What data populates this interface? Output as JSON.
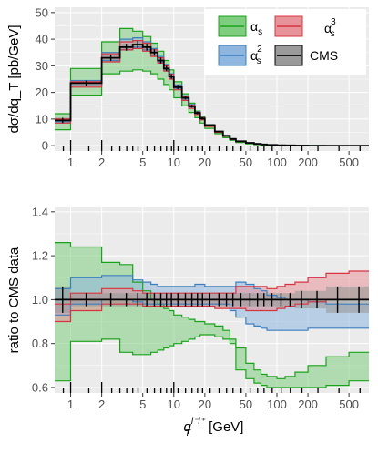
{
  "chart_data": [
    {
      "type": "line",
      "panel": "top",
      "ylabel": "dσ/dq_T [pb/GeV]",
      "xscale": "log",
      "xlim": [
        0.7,
        780
      ],
      "ylim": [
        -2,
        52
      ],
      "yticks": [
        0,
        10,
        20,
        30,
        40,
        50
      ],
      "grid": true,
      "legend_position": "top-right",
      "bin_edges": [
        0.7,
        1,
        2,
        3,
        4,
        5,
        6,
        7,
        8,
        9,
        10,
        12,
        14,
        16,
        18,
        20,
        25,
        30,
        35,
        40,
        50,
        60,
        70,
        80,
        100,
        120,
        150,
        200,
        300,
        500,
        780
      ],
      "series": [
        {
          "name": "α_s",
          "color": "#1aa31a",
          "fill": "#7fce7f",
          "low": [
            6,
            19,
            27,
            28,
            28.5,
            28,
            27,
            25,
            23,
            21,
            18,
            15,
            12.5,
            10.5,
            8.5,
            6.5,
            4.5,
            3.0,
            2.0,
            1.2,
            0.7,
            0.4,
            0.25,
            0.15,
            0.08,
            0.05,
            0.03,
            0.015,
            0.006,
            0.002
          ],
          "high": [
            12,
            29,
            39,
            44,
            43,
            41,
            38.5,
            35.5,
            32,
            28.5,
            24,
            19.5,
            16,
            13,
            11,
            8,
            5.5,
            3.8,
            2.6,
            1.7,
            1.1,
            0.75,
            0.5,
            0.32,
            0.2,
            0.13,
            0.07,
            0.035,
            0.015,
            0.006
          ]
        },
        {
          "name": "α_s^2",
          "color": "#3b7fc0",
          "fill": "#8eb6de",
          "low": [
            9,
            22.5,
            32,
            36,
            37,
            36,
            34,
            31.5,
            28.5,
            25.5,
            21.5,
            17.5,
            14.5,
            12,
            10,
            7.5,
            5.2,
            3.6,
            2.4,
            1.6,
            1.0,
            0.65,
            0.42,
            0.28,
            0.17,
            0.11,
            0.06,
            0.03,
            0.012,
            0.004
          ],
          "high": [
            10,
            24.5,
            35,
            40,
            40.5,
            39,
            36.5,
            33.5,
            30.5,
            27,
            22.8,
            18.7,
            15.5,
            12.8,
            10.6,
            7.9,
            5.5,
            3.8,
            2.6,
            1.7,
            1.1,
            0.72,
            0.47,
            0.31,
            0.19,
            0.12,
            0.07,
            0.035,
            0.014,
            0.005
          ]
        },
        {
          "name": "α_s^3",
          "color": "#d8343f",
          "fill": "#e8939a",
          "low": [
            8.5,
            22,
            31.5,
            36,
            36.5,
            35.5,
            33.5,
            31,
            28,
            25,
            21,
            17,
            14,
            11.7,
            9.7,
            7.2,
            5.0,
            3.5,
            2.4,
            1.6,
            1.0,
            0.65,
            0.43,
            0.28,
            0.17,
            0.11,
            0.06,
            0.03,
            0.012,
            0.004
          ],
          "high": [
            10,
            24,
            34.5,
            39,
            39.5,
            38.5,
            36,
            33,
            30,
            26.8,
            22.5,
            18.4,
            15.2,
            12.6,
            10.5,
            7.8,
            5.4,
            3.75,
            2.55,
            1.7,
            1.08,
            0.7,
            0.46,
            0.3,
            0.185,
            0.12,
            0.065,
            0.033,
            0.013,
            0.005
          ]
        }
      ],
      "cms": {
        "name": "CMS",
        "color": "#000000",
        "fill": "#9a9a9a",
        "values": [
          9.5,
          23.5,
          33,
          37,
          38,
          37,
          35,
          32,
          29,
          26,
          22,
          18,
          14.8,
          12.3,
          10.2,
          7.6,
          5.3,
          3.7,
          2.5,
          1.65,
          1.05,
          0.68,
          0.45,
          0.29,
          0.18,
          0.115,
          0.065,
          0.032,
          0.013,
          0.0045
        ],
        "err": [
          1,
          1,
          1.2,
          1.3,
          1.3,
          1.3,
          1.2,
          1.1,
          1,
          0.9,
          0.8,
          0.6,
          0.5,
          0.45,
          0.4,
          0.3,
          0.2,
          0.15,
          0.1,
          0.08,
          0.05,
          0.04,
          0.03,
          0.02,
          0.015,
          0.01,
          0.006,
          0.004,
          0.002,
          0.001
        ]
      }
    },
    {
      "type": "line",
      "panel": "bottom",
      "ylabel": "ratio to CMS data",
      "xlabel_base": "q",
      "xlabel_sub": "T",
      "xlabel_sup": "l⁻l⁺",
      "xlabel_unit": " [GeV]",
      "xscale": "log",
      "xlim": [
        0.7,
        780
      ],
      "ylim": [
        0.575,
        1.42
      ],
      "yticks": [
        0.6,
        0.8,
        1.0,
        1.2,
        1.4
      ],
      "ytick_labels": [
        "0.6",
        "0.8",
        "1.0",
        "1.2",
        "1.4"
      ],
      "grid": true,
      "bin_edges": [
        0.7,
        1,
        2,
        3,
        4,
        5,
        6,
        7,
        8,
        9,
        10,
        12,
        14,
        16,
        18,
        20,
        25,
        30,
        35,
        40,
        50,
        60,
        70,
        80,
        100,
        120,
        150,
        200,
        300,
        500,
        780
      ],
      "series": [
        {
          "name": "α_s",
          "color": "#1aa31a",
          "fill": "#7fce7f",
          "low": [
            0.63,
            0.81,
            0.82,
            0.76,
            0.75,
            0.75,
            0.76,
            0.77,
            0.78,
            0.79,
            0.8,
            0.81,
            0.82,
            0.83,
            0.84,
            0.84,
            0.83,
            0.82,
            0.8,
            0.68,
            0.64,
            0.62,
            0.61,
            0.6,
            0.6,
            0.6,
            0.6,
            0.6,
            0.61,
            0.63
          ],
          "high": [
            1.26,
            1.24,
            1.17,
            1.16,
            1.08,
            1.04,
            1.0,
            0.98,
            0.96,
            0.95,
            0.93,
            0.92,
            0.91,
            0.9,
            0.9,
            0.89,
            0.88,
            0.86,
            0.82,
            0.78,
            0.71,
            0.68,
            0.66,
            0.65,
            0.64,
            0.65,
            0.67,
            0.7,
            0.74,
            0.76
          ]
        },
        {
          "name": "α_s^2",
          "color": "#3b7fc0",
          "fill": "#8eb6de",
          "low": [
            0.93,
            0.98,
            1.0,
            1.0,
            0.99,
            0.98,
            0.98,
            0.98,
            0.98,
            0.98,
            0.98,
            0.98,
            0.98,
            0.98,
            0.98,
            0.98,
            0.98,
            0.98,
            0.95,
            0.92,
            0.89,
            0.88,
            0.87,
            0.86,
            0.86,
            0.86,
            0.86,
            0.87,
            0.87,
            0.87
          ],
          "high": [
            1.05,
            1.1,
            1.11,
            1.11,
            1.09,
            1.08,
            1.07,
            1.06,
            1.06,
            1.06,
            1.06,
            1.06,
            1.06,
            1.07,
            1.07,
            1.06,
            1.06,
            1.06,
            1.06,
            1.08,
            1.07,
            1.05,
            1.04,
            1.02,
            1.01,
            1.0,
            1.0,
            0.99,
            0.98,
            0.98
          ]
        },
        {
          "name": "α_s^3",
          "color": "#d8343f",
          "fill": "#e8939a",
          "low": [
            0.9,
            0.95,
            0.98,
            0.98,
            0.98,
            0.97,
            0.97,
            0.97,
            0.97,
            0.97,
            0.97,
            0.97,
            0.97,
            0.97,
            0.97,
            0.97,
            0.96,
            0.96,
            0.96,
            0.96,
            0.95,
            0.95,
            0.95,
            0.95,
            0.96,
            0.97,
            0.98,
            0.99,
            1.0,
            1.0
          ],
          "high": [
            0.98,
            1.03,
            1.05,
            1.05,
            1.04,
            1.03,
            1.03,
            1.03,
            1.03,
            1.03,
            1.03,
            1.03,
            1.03,
            1.03,
            1.03,
            1.03,
            1.03,
            1.03,
            1.03,
            1.06,
            1.06,
            1.06,
            1.06,
            1.05,
            1.06,
            1.07,
            1.08,
            1.1,
            1.12,
            1.13
          ]
        }
      ],
      "cms": {
        "name": "CMS",
        "color": "#000000",
        "fill": "#9a9a9a",
        "values": [
          1,
          1,
          1,
          1,
          1,
          1,
          1,
          1,
          1,
          1,
          1,
          1,
          1,
          1,
          1,
          1,
          1,
          1,
          1,
          1,
          1,
          1,
          1,
          1,
          1,
          1,
          1,
          1,
          1,
          1
        ],
        "err": [
          0.06,
          0.03,
          0.03,
          0.03,
          0.03,
          0.03,
          0.03,
          0.03,
          0.03,
          0.03,
          0.03,
          0.03,
          0.03,
          0.03,
          0.03,
          0.03,
          0.03,
          0.03,
          0.03,
          0.03,
          0.03,
          0.03,
          0.03,
          0.03,
          0.03,
          0.03,
          0.04,
          0.04,
          0.06,
          0.06
        ]
      }
    }
  ],
  "axes": {
    "x_tick_labels": [
      {
        "value": 1,
        "label": "1"
      },
      {
        "value": 2,
        "label": "2"
      },
      {
        "value": 5,
        "label": "5"
      },
      {
        "value": 10,
        "label": "10"
      },
      {
        "value": 20,
        "label": "20"
      },
      {
        "value": 50,
        "label": "50"
      },
      {
        "value": 100,
        "label": "100"
      },
      {
        "value": 200,
        "label": "200"
      },
      {
        "value": 500,
        "label": "500"
      }
    ],
    "rug_ticks": [
      0.85,
      1,
      1.5,
      2,
      2.5,
      3,
      3.5,
      4,
      4.5,
      5.5,
      6.5,
      7.5,
      8.5,
      9.5,
      10,
      11,
      13,
      15,
      17,
      19,
      22.5,
      27.5,
      32.5,
      37.5,
      45,
      55,
      65,
      75,
      90,
      110,
      135,
      175,
      250,
      400,
      640
    ]
  },
  "legend": {
    "entries": [
      {
        "key": "a1",
        "label": "α",
        "sub": "s",
        "sup": ""
      },
      {
        "key": "a3",
        "label": "α",
        "sub": "s",
        "sup": "3"
      },
      {
        "key": "a2",
        "label": "α",
        "sub": "s",
        "sup": "2"
      },
      {
        "key": "cms",
        "label": "CMS",
        "sub": "",
        "sup": ""
      }
    ]
  },
  "colors": {
    "panel_bg": "#ebebeb",
    "grid_major": "#ffffff",
    "axis_text": "#4d4d4d"
  }
}
